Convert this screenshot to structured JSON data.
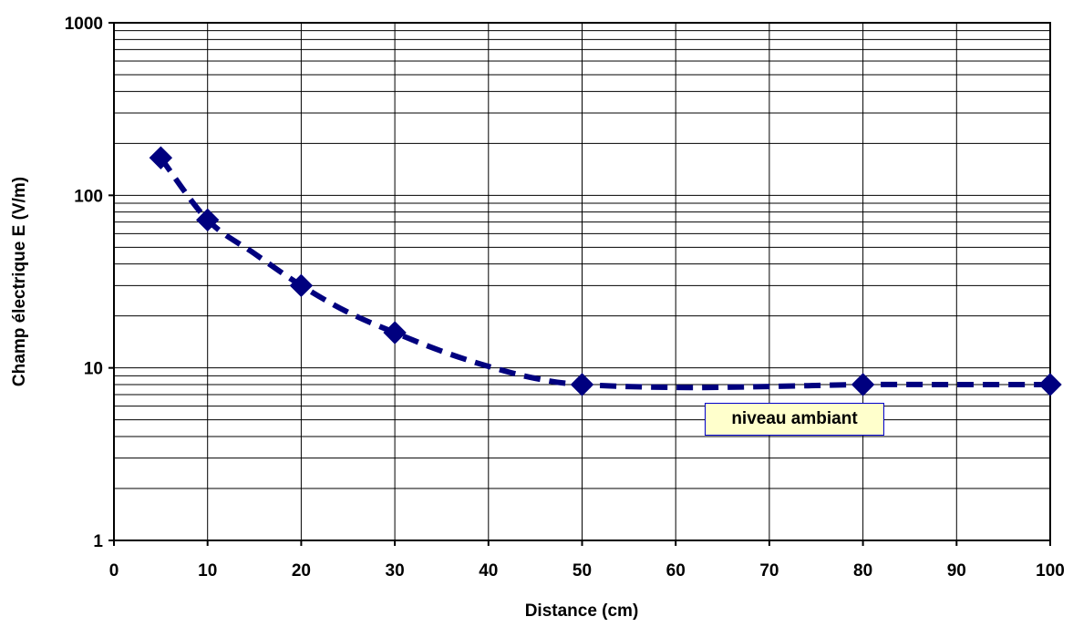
{
  "chart_data": {
    "type": "scatter",
    "title": "",
    "xlabel": "Distance (cm)",
    "ylabel": "Champ électrique E (V/m)",
    "xlim": [
      0,
      100
    ],
    "ylim": [
      1,
      1000
    ],
    "y_scale": "log",
    "grid": true,
    "x_ticks": [
      "0",
      "10",
      "20",
      "30",
      "40",
      "50",
      "60",
      "70",
      "80",
      "90",
      "100"
    ],
    "y_ticks": [
      "1",
      "10",
      "100",
      "1000"
    ],
    "series": [
      {
        "x": [
          5,
          10,
          20,
          30,
          50,
          80,
          100
        ],
        "y": [
          165,
          72,
          30,
          16,
          8,
          8,
          8
        ]
      }
    ],
    "trendline": {
      "style": "dashed",
      "x": [
        5,
        10,
        15,
        20,
        25,
        30,
        35,
        40,
        45,
        50,
        60,
        70,
        80,
        90,
        100
      ],
      "y": [
        165,
        72,
        46,
        30,
        21,
        16,
        12.5,
        10.2,
        8.7,
        8,
        7.7,
        7.8,
        8,
        8,
        8
      ]
    },
    "colors": {
      "series": "#00007f",
      "annotation_bg": "#ffffcc",
      "annotation_border": "#0000cc"
    },
    "annotations": [
      {
        "text": "niveau ambiant"
      }
    ]
  }
}
